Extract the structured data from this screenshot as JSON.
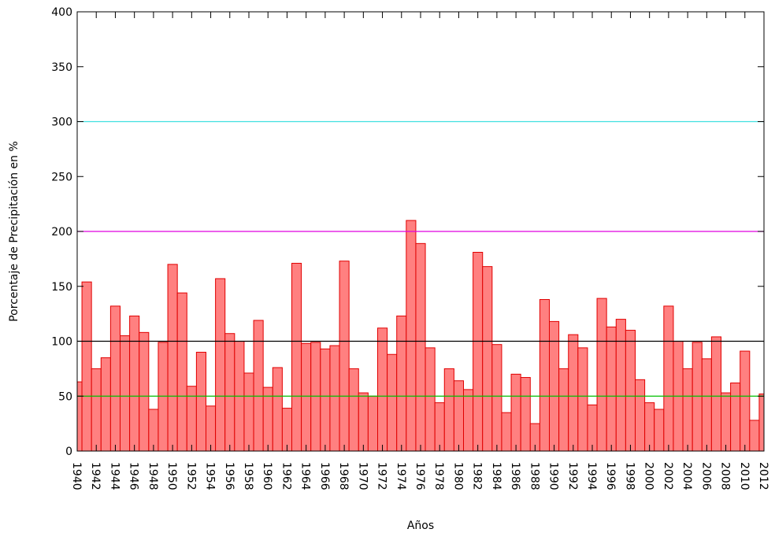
{
  "chart_data": {
    "type": "bar",
    "x_label": "Años",
    "y_label": "Porcentaje de Precipitación en %",
    "x": [
      1940,
      1941,
      1942,
      1943,
      1944,
      1945,
      1946,
      1947,
      1948,
      1949,
      1950,
      1951,
      1952,
      1953,
      1954,
      1955,
      1956,
      1957,
      1958,
      1959,
      1960,
      1961,
      1962,
      1963,
      1964,
      1965,
      1966,
      1967,
      1968,
      1969,
      1970,
      1971,
      1972,
      1973,
      1974,
      1975,
      1976,
      1977,
      1978,
      1979,
      1980,
      1981,
      1982,
      1983,
      1984,
      1985,
      1986,
      1987,
      1988,
      1989,
      1990,
      1991,
      1992,
      1993,
      1994,
      1995,
      1996,
      1997,
      1998,
      1999,
      2000,
      2001,
      2002,
      2003,
      2004,
      2005,
      2006,
      2007,
      2008,
      2009,
      2010,
      2011,
      2012
    ],
    "values": [
      63,
      154,
      75,
      85,
      132,
      105,
      123,
      108,
      38,
      99,
      170,
      144,
      59,
      90,
      41,
      157,
      107,
      100,
      71,
      119,
      58,
      76,
      39,
      171,
      98,
      99,
      93,
      96,
      173,
      75,
      53,
      50,
      112,
      88,
      123,
      210,
      189,
      94,
      44,
      75,
      64,
      56,
      181,
      168,
      97,
      35,
      70,
      67,
      25,
      138,
      118,
      75,
      106,
      94,
      42,
      139,
      113,
      120,
      110,
      65,
      44,
      38,
      132,
      100,
      75,
      99,
      84,
      104,
      53,
      62,
      91,
      28,
      52
    ],
    "color": "#ff8080",
    "edge_color": "#e00000",
    "xlim": [
      1940,
      2012
    ],
    "xticks": [
      1940,
      1942,
      1944,
      1946,
      1948,
      1950,
      1952,
      1954,
      1956,
      1958,
      1960,
      1962,
      1964,
      1966,
      1968,
      1970,
      1972,
      1974,
      1976,
      1978,
      1980,
      1982,
      1984,
      1986,
      1988,
      1990,
      1992,
      1994,
      1996,
      1998,
      2000,
      2002,
      2004,
      2006,
      2008,
      2010,
      2012
    ],
    "ylim": [
      0,
      400
    ],
    "yticks": [
      0,
      50,
      100,
      150,
      200,
      250,
      300,
      350,
      400
    ],
    "grid": false,
    "hlines": [
      {
        "value": 50,
        "color": "#00c000"
      },
      {
        "value": 100,
        "color": "#000000"
      },
      {
        "value": 200,
        "color": "#e000e0"
      },
      {
        "value": 300,
        "color": "#40e0e0"
      }
    ]
  }
}
